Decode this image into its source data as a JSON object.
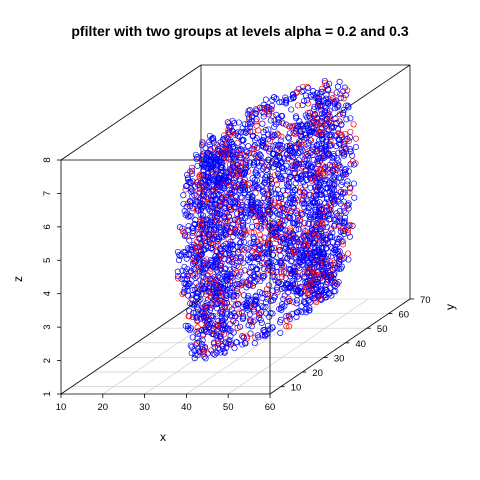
{
  "chart_data": {
    "type": "scatter",
    "title": "pfilter with two groups at levels alpha = 0.2 and 0.3",
    "xlabel": "x",
    "ylabel": "y",
    "zlabel": "z",
    "xlim": [
      10,
      60
    ],
    "ylim": [
      5,
      70
    ],
    "zlim": [
      1,
      8
    ],
    "x_ticks": [
      "10",
      "20",
      "30",
      "40",
      "50",
      "60"
    ],
    "y_ticks": [
      "10",
      "20",
      "30",
      "40",
      "50",
      "60",
      "70"
    ],
    "z_ticks": [
      "1",
      "2",
      "3",
      "4",
      "5",
      "6",
      "7",
      "8"
    ],
    "grid": true,
    "marker": "open-circle",
    "layers": [
      {
        "z": 1.95,
        "x_min": 32,
        "x_max": 52
      },
      {
        "z": 2.55,
        "x_min": 30,
        "x_max": 54
      },
      {
        "z": 3.05,
        "x_min": 29,
        "x_max": 56
      },
      {
        "z": 3.55,
        "x_min": 28,
        "x_max": 56
      },
      {
        "z": 4.05,
        "x_min": 27,
        "x_max": 57
      },
      {
        "z": 4.55,
        "x_min": 27,
        "x_max": 57
      },
      {
        "z": 5.1,
        "x_min": 27,
        "x_max": 57
      },
      {
        "z": 5.6,
        "x_min": 28,
        "x_max": 57
      },
      {
        "z": 6.1,
        "x_min": 28,
        "x_max": 57
      },
      {
        "z": 6.6,
        "x_min": 29,
        "x_max": 56
      },
      {
        "z": 7.1,
        "x_min": 30,
        "x_max": 55
      },
      {
        "z": 7.6,
        "x_min": 32,
        "x_max": 54
      }
    ],
    "series": [
      {
        "name": "",
        "color": "#0000ff"
      },
      {
        "name": "",
        "color": "#ff0000"
      }
    ]
  }
}
